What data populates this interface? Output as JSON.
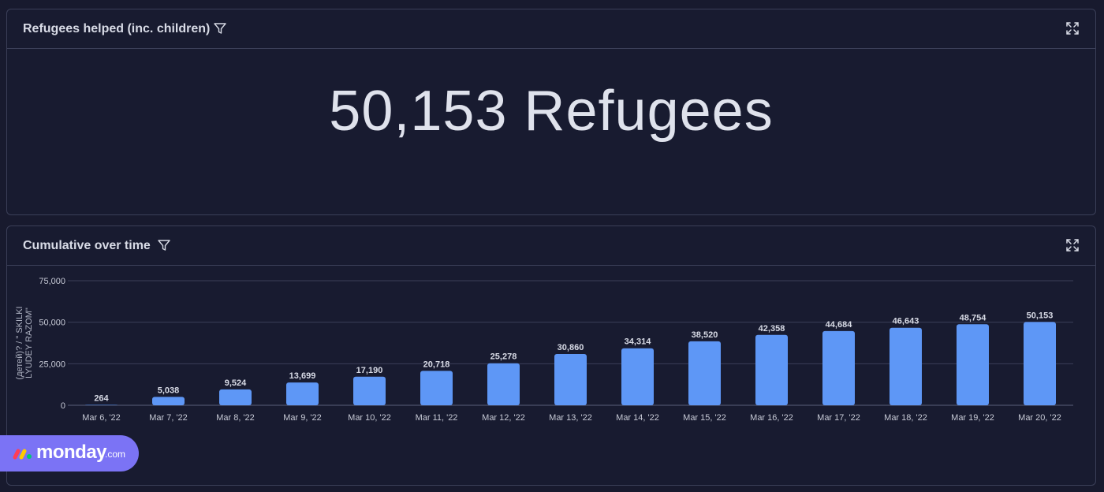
{
  "kpi_panel": {
    "title": "Refugees helped (inc. children)",
    "value": "50,153 Refugees",
    "filter_icon": "filter-icon",
    "expand_icon": "expand-icon"
  },
  "chart_panel": {
    "title": "Cumulative over time",
    "filter_icon": "filter-icon",
    "expand_icon": "expand-icon"
  },
  "logo": {
    "text": "monday",
    "suffix": ".com",
    "colors": [
      "#ff3d57",
      "#ffcb00",
      "#00ca72"
    ]
  },
  "colors": {
    "background": "#181b30",
    "bar": "#5e97f6",
    "grid": "#3b3f58",
    "text": "#d8dbe6",
    "logo_bg": "#7b73f5"
  },
  "chart_data": {
    "type": "bar",
    "categories": [
      "Mar 6, '22",
      "Mar 7, '22",
      "Mar 8, '22",
      "Mar 9, '22",
      "Mar 10, '22",
      "Mar 11, '22",
      "Mar 12, '22",
      "Mar 13, '22",
      "Mar 14, '22",
      "Mar 15, '22",
      "Mar 16, '22",
      "Mar 17, '22",
      "Mar 18, '22",
      "Mar 19, '22",
      "Mar 20, '22"
    ],
    "values": [
      264,
      5038,
      9524,
      13699,
      17190,
      20718,
      25278,
      30860,
      34314,
      38520,
      42358,
      44684,
      46643,
      48754,
      50153
    ],
    "data_labels": [
      "264",
      "5,038",
      "9,524",
      "13,699",
      "17,190",
      "20,718",
      "25,278",
      "30,860",
      "34,314",
      "38,520",
      "42,358",
      "44,684",
      "46,643",
      "48,754",
      "50,153"
    ],
    "ylabel_lines": [
      "(детей)? / \" SKILKI",
      "LYUDEY RAZOM\""
    ],
    "yticks": [
      0,
      25000,
      50000,
      75000
    ],
    "ytick_labels": [
      "0",
      "25,000",
      "50,000",
      "75,000"
    ],
    "ylim": [
      0,
      75000
    ],
    "grid": true
  }
}
